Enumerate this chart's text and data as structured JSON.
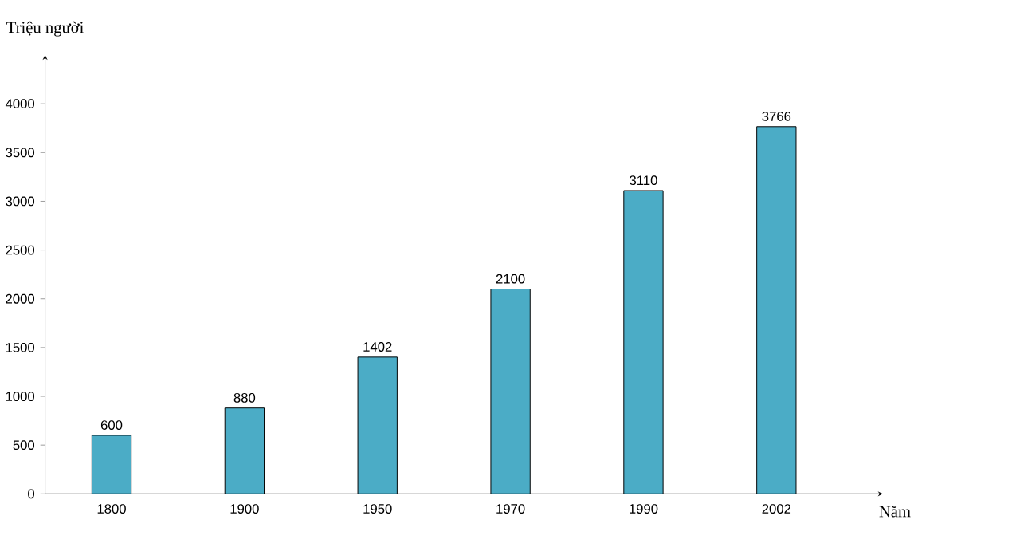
{
  "chart_data": {
    "type": "bar",
    "xlabel": "Năm",
    "ylabel": "Triệu người",
    "categories": [
      "1800",
      "1900",
      "1950",
      "1970",
      "1990",
      "2002"
    ],
    "values": [
      600,
      880,
      1402,
      2100,
      3110,
      3766
    ],
    "color": "#4bacc6",
    "ylim": [
      0,
      4500
    ],
    "yticks": [
      0,
      500,
      1000,
      1500,
      2000,
      2500,
      3000,
      3500,
      4000
    ],
    "grid": false,
    "data_labels": true
  }
}
